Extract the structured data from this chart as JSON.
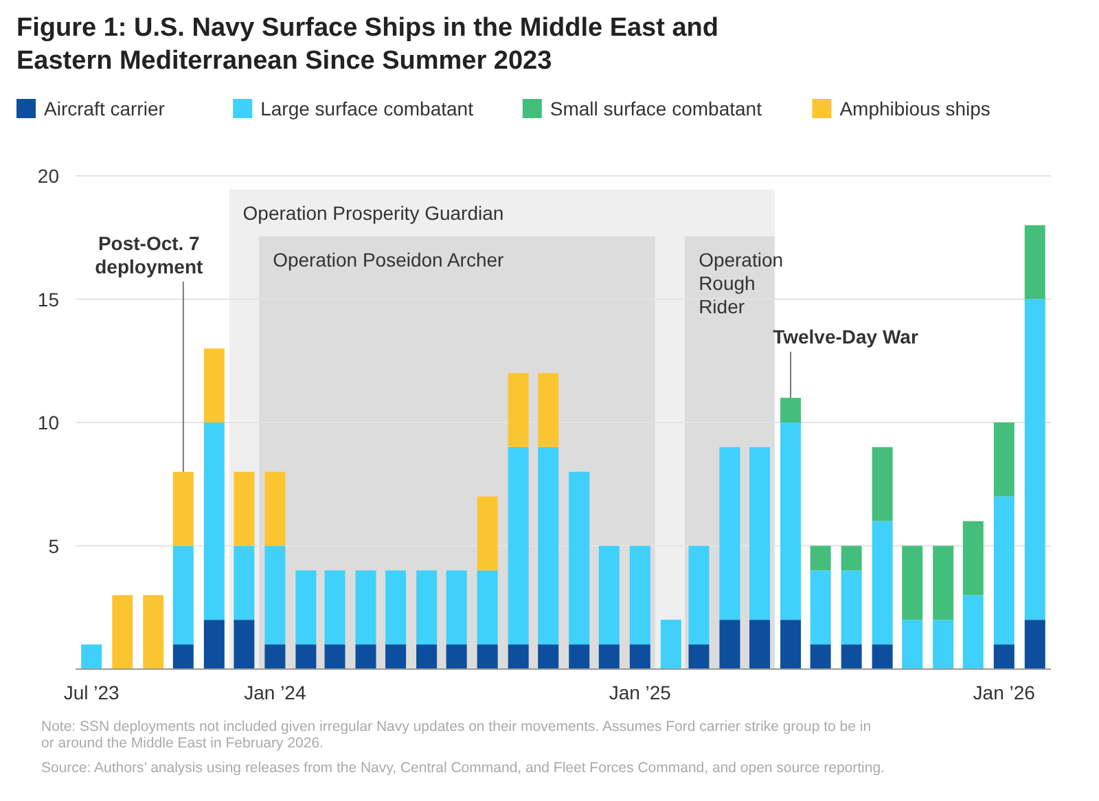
{
  "chart_data": {
    "type": "bar",
    "stacked": true,
    "title": "Figure 1: U.S. Navy Surface Ships in the Middle East and Eastern Mediterranean Since Summer 2023",
    "x": [
      "2023-07",
      "2023-08",
      "2023-09",
      "2023-10",
      "2023-11",
      "2023-12",
      "2024-01",
      "2024-02",
      "2024-03",
      "2024-04",
      "2024-05",
      "2024-06",
      "2024-07",
      "2024-08",
      "2024-09",
      "2024-10",
      "2024-11",
      "2024-12",
      "2025-01",
      "2025-02",
      "2025-03",
      "2025-04",
      "2025-05",
      "2025-06",
      "2025-07",
      "2025-08",
      "2025-09",
      "2025-10",
      "2025-11",
      "2025-12",
      "2026-01",
      "2026-02"
    ],
    "series": [
      {
        "name": "Aircraft carrier",
        "color": "#0d4f9e",
        "values": [
          0,
          0,
          0,
          1,
          2,
          2,
          1,
          1,
          1,
          1,
          1,
          1,
          1,
          1,
          1,
          1,
          1,
          1,
          1,
          0,
          1,
          2,
          2,
          2,
          1,
          1,
          1,
          0,
          0,
          0,
          1,
          2
        ]
      },
      {
        "name": "Large surface combatant",
        "color": "#3fd0fb",
        "values": [
          1,
          0,
          0,
          4,
          8,
          3,
          4,
          3,
          3,
          3,
          3,
          3,
          3,
          3,
          8,
          8,
          7,
          4,
          4,
          2,
          4,
          7,
          7,
          8,
          3,
          3,
          5,
          2,
          2,
          3,
          6,
          13
        ]
      },
      {
        "name": "Small surface combatant",
        "color": "#44bf7b",
        "values": [
          0,
          0,
          0,
          0,
          0,
          0,
          0,
          0,
          0,
          0,
          0,
          0,
          0,
          0,
          0,
          0,
          0,
          0,
          0,
          0,
          0,
          0,
          0,
          1,
          1,
          1,
          3,
          3,
          3,
          3,
          3,
          3
        ]
      },
      {
        "name": "Amphibious ships",
        "color": "#fbc531",
        "values": [
          0,
          3,
          3,
          3,
          3,
          3,
          3,
          0,
          0,
          0,
          0,
          0,
          0,
          3,
          3,
          3,
          0,
          0,
          0,
          0,
          0,
          0,
          0,
          0,
          0,
          0,
          0,
          0,
          0,
          0,
          0,
          0
        ]
      }
    ],
    "xlim": [
      "2023-06-15",
      "2026-02-17"
    ],
    "xticks": [
      {
        "value": "2023-07",
        "label": "Jul ’23"
      },
      {
        "value": "2024-01",
        "label": "Jan ’24"
      },
      {
        "value": "2025-01",
        "label": "Jan ’25"
      },
      {
        "value": "2026-01",
        "label": "Jan ’26"
      }
    ],
    "ylim": [
      0,
      20
    ],
    "yticks": [
      {
        "value": 0,
        "label": null
      },
      5,
      10,
      15,
      20
    ],
    "grid": "y",
    "legend": "top left",
    "bands": [
      {
        "axis": "x",
        "from": "2023-11-16",
        "to": "2025-05-16",
        "label": "Operation Prosperity Guardian",
        "color": "#efefef"
      },
      {
        "axis": "x",
        "from": "2023-12-16",
        "to": "2025-01-16",
        "label": "Operation Poseidon Archer",
        "color": "#dcdcdc"
      },
      {
        "axis": "x",
        "from": "2025-02-15",
        "to": "2025-05-16",
        "label": "Operation Rough Rider",
        "color": "#dcdcdc"
      }
    ],
    "annotations": [
      {
        "text": "Post-Oct. 7 deployment",
        "x": "2023-10",
        "y": 8
      },
      {
        "text": "Twelve-Day War",
        "x": "2025-06",
        "y": 11
      },
      "Note: SSN deployments not included given irregular Navy updates on their movements. Assumes Ford carrier strike group to be in or around the Middle East in February 2026.",
      "Source: Authors’ analysis using releases from the Navy, Central Command, and Fleet Forces Command, and open source reporting."
    ]
  }
}
